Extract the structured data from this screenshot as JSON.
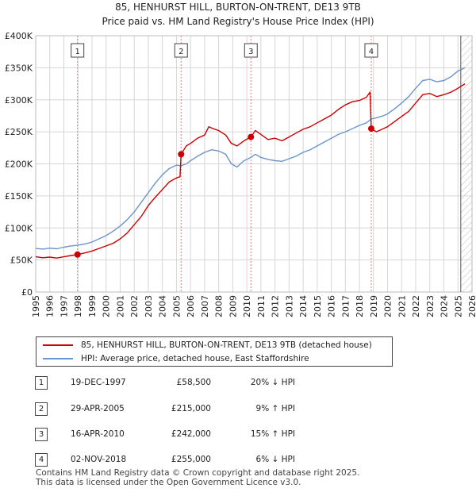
{
  "header": {
    "title": "85, HENHURST HILL, BURTON-ON-TRENT, DE13 9TB",
    "subtitle": "Price paid vs. HM Land Registry's House Price Index (HPI)"
  },
  "colors": {
    "price": "#cc0000",
    "hpi": "#6a96cc",
    "grid": "#d6d6d6",
    "shade": "#dde5f3",
    "marker_line": "#e88080"
  },
  "chart_data": {
    "type": "line",
    "title": "85, HENHURST HILL, BURTON-ON-TRENT, DE13 9TB",
    "subtitle": "Price paid vs. HM Land Registry's House Price Index (HPI)",
    "xlim": [
      1995,
      2026
    ],
    "ylim": [
      0,
      400000
    ],
    "x_ticks": [
      1995,
      1996,
      1997,
      1998,
      1999,
      2000,
      2001,
      2002,
      2003,
      2004,
      2005,
      2006,
      2007,
      2008,
      2009,
      2010,
      2011,
      2012,
      2013,
      2014,
      2015,
      2016,
      2017,
      2018,
      2019,
      2020,
      2021,
      2022,
      2023,
      2024,
      2025,
      2026
    ],
    "y_ticks": [
      {
        "value": 0,
        "label": "£0"
      },
      {
        "value": 50000,
        "label": "£50K"
      },
      {
        "value": 100000,
        "label": "£100K"
      },
      {
        "value": 150000,
        "label": "£150K"
      },
      {
        "value": 200000,
        "label": "£200K"
      },
      {
        "value": 250000,
        "label": "£250K"
      },
      {
        "value": 300000,
        "label": "£300K"
      },
      {
        "value": 350000,
        "label": "£350K"
      },
      {
        "value": 400000,
        "label": "£400K"
      }
    ],
    "forecast_from": 2025.2,
    "series": [
      {
        "name": "85, HENHURST HILL, BURTON-ON-TRENT, DE13 9TB (detached house)",
        "key": "price",
        "points": [
          [
            1995.0,
            55000
          ],
          [
            1995.5,
            53500
          ],
          [
            1996.0,
            54500
          ],
          [
            1996.5,
            53000
          ],
          [
            1997.0,
            55000
          ],
          [
            1997.5,
            57000
          ],
          [
            1997.97,
            58500
          ],
          [
            1998.5,
            61000
          ],
          [
            1999.0,
            64000
          ],
          [
            1999.5,
            68000
          ],
          [
            2000.0,
            72000
          ],
          [
            2000.5,
            76000
          ],
          [
            2001.0,
            83000
          ],
          [
            2001.5,
            92000
          ],
          [
            2002.0,
            105000
          ],
          [
            2002.5,
            118000
          ],
          [
            2003.0,
            135000
          ],
          [
            2003.5,
            148000
          ],
          [
            2004.0,
            160000
          ],
          [
            2004.5,
            172000
          ],
          [
            2005.0,
            178000
          ],
          [
            2005.25,
            180000
          ],
          [
            2005.33,
            215000
          ],
          [
            2005.7,
            228000
          ],
          [
            2006.0,
            232000
          ],
          [
            2006.5,
            240000
          ],
          [
            2007.0,
            245000
          ],
          [
            2007.3,
            258000
          ],
          [
            2007.6,
            255000
          ],
          [
            2008.0,
            252000
          ],
          [
            2008.5,
            245000
          ],
          [
            2008.9,
            232000
          ],
          [
            2009.3,
            228000
          ],
          [
            2009.8,
            236000
          ],
          [
            2010.29,
            242000
          ],
          [
            2010.6,
            252000
          ],
          [
            2011.0,
            246000
          ],
          [
            2011.5,
            238000
          ],
          [
            2012.0,
            240000
          ],
          [
            2012.5,
            236000
          ],
          [
            2013.0,
            242000
          ],
          [
            2013.5,
            248000
          ],
          [
            2014.0,
            254000
          ],
          [
            2014.5,
            258000
          ],
          [
            2015.0,
            264000
          ],
          [
            2015.5,
            270000
          ],
          [
            2016.0,
            276000
          ],
          [
            2016.5,
            285000
          ],
          [
            2017.0,
            292000
          ],
          [
            2017.5,
            297000
          ],
          [
            2018.0,
            299000
          ],
          [
            2018.5,
            304000
          ],
          [
            2018.75,
            312000
          ],
          [
            2018.84,
            255000
          ],
          [
            2019.2,
            250000
          ],
          [
            2019.7,
            255000
          ],
          [
            2020.0,
            258000
          ],
          [
            2020.5,
            266000
          ],
          [
            2021.0,
            274000
          ],
          [
            2021.5,
            282000
          ],
          [
            2022.0,
            295000
          ],
          [
            2022.5,
            308000
          ],
          [
            2023.0,
            310000
          ],
          [
            2023.5,
            305000
          ],
          [
            2024.0,
            308000
          ],
          [
            2024.5,
            312000
          ],
          [
            2025.0,
            318000
          ],
          [
            2025.5,
            325000
          ]
        ]
      },
      {
        "name": "HPI: Average price, detached house, East Staffordshire",
        "key": "hpi",
        "points": [
          [
            1995.0,
            68000
          ],
          [
            1995.5,
            67000
          ],
          [
            1996.0,
            68500
          ],
          [
            1996.5,
            67500
          ],
          [
            1997.0,
            70000
          ],
          [
            1997.5,
            72000
          ],
          [
            1997.97,
            73000
          ],
          [
            1998.5,
            75000
          ],
          [
            1999.0,
            78000
          ],
          [
            1999.5,
            83000
          ],
          [
            2000.0,
            88000
          ],
          [
            2000.5,
            95000
          ],
          [
            2001.0,
            103000
          ],
          [
            2001.5,
            113000
          ],
          [
            2002.0,
            125000
          ],
          [
            2002.5,
            140000
          ],
          [
            2003.0,
            155000
          ],
          [
            2003.5,
            170000
          ],
          [
            2004.0,
            183000
          ],
          [
            2004.5,
            193000
          ],
          [
            2005.0,
            198000
          ],
          [
            2005.33,
            197000
          ],
          [
            2005.7,
            200000
          ],
          [
            2006.0,
            205000
          ],
          [
            2006.5,
            212000
          ],
          [
            2007.0,
            218000
          ],
          [
            2007.5,
            222000
          ],
          [
            2008.0,
            220000
          ],
          [
            2008.5,
            215000
          ],
          [
            2008.9,
            200000
          ],
          [
            2009.3,
            195000
          ],
          [
            2009.8,
            205000
          ],
          [
            2010.29,
            210000
          ],
          [
            2010.6,
            215000
          ],
          [
            2011.0,
            210000
          ],
          [
            2011.5,
            207000
          ],
          [
            2012.0,
            205000
          ],
          [
            2012.5,
            204000
          ],
          [
            2013.0,
            208000
          ],
          [
            2013.5,
            212000
          ],
          [
            2014.0,
            218000
          ],
          [
            2014.5,
            222000
          ],
          [
            2015.0,
            228000
          ],
          [
            2015.5,
            234000
          ],
          [
            2016.0,
            240000
          ],
          [
            2016.5,
            246000
          ],
          [
            2017.0,
            250000
          ],
          [
            2017.5,
            255000
          ],
          [
            2018.0,
            260000
          ],
          [
            2018.5,
            264000
          ],
          [
            2018.84,
            270000
          ],
          [
            2019.2,
            272000
          ],
          [
            2019.7,
            275000
          ],
          [
            2020.0,
            278000
          ],
          [
            2020.5,
            286000
          ],
          [
            2021.0,
            295000
          ],
          [
            2021.5,
            305000
          ],
          [
            2022.0,
            318000
          ],
          [
            2022.5,
            330000
          ],
          [
            2023.0,
            332000
          ],
          [
            2023.5,
            328000
          ],
          [
            2024.0,
            330000
          ],
          [
            2024.5,
            336000
          ],
          [
            2025.0,
            345000
          ],
          [
            2025.5,
            350000
          ]
        ]
      }
    ],
    "sales": [
      {
        "n": "1",
        "x": 1997.97,
        "y": 58500
      },
      {
        "n": "2",
        "x": 2005.33,
        "y": 215000
      },
      {
        "n": "3",
        "x": 2010.29,
        "y": 242000
      },
      {
        "n": "4",
        "x": 2018.84,
        "y": 255000
      }
    ]
  },
  "legend": {
    "price_label": "85, HENHURST HILL, BURTON-ON-TRENT, DE13 9TB (detached house)",
    "hpi_label": "HPI: Average price, detached house, East Staffordshire"
  },
  "transactions": [
    {
      "n": "1",
      "date": "19-DEC-1997",
      "price": "£58,500",
      "hpi": "20% ↓ HPI"
    },
    {
      "n": "2",
      "date": "29-APR-2005",
      "price": "£215,000",
      "hpi": "9% ↑ HPI"
    },
    {
      "n": "3",
      "date": "16-APR-2010",
      "price": "£242,000",
      "hpi": "15% ↑ HPI"
    },
    {
      "n": "4",
      "date": "02-NOV-2018",
      "price": "£255,000",
      "hpi": "6% ↓ HPI"
    }
  ],
  "footer": {
    "line1": "Contains HM Land Registry data © Crown copyright and database right 2025.",
    "line2": "This data is licensed under the Open Government Licence v3.0."
  }
}
